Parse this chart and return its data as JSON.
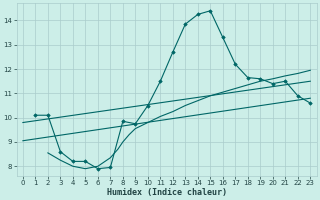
{
  "xlabel": "Humidex (Indice chaleur)",
  "bg_color": "#cceee8",
  "grid_color": "#aacccc",
  "line_color": "#006666",
  "xlim": [
    -0.5,
    23.5
  ],
  "ylim": [
    7.6,
    14.7
  ],
  "xticks": [
    0,
    1,
    2,
    3,
    4,
    5,
    6,
    7,
    8,
    9,
    10,
    11,
    12,
    13,
    14,
    15,
    16,
    17,
    18,
    19,
    20,
    21,
    22,
    23
  ],
  "yticks": [
    8,
    9,
    10,
    11,
    12,
    13,
    14
  ],
  "main_x": [
    1,
    2,
    3,
    4,
    5,
    6,
    7,
    8,
    9,
    10,
    11,
    12,
    13,
    14,
    15,
    16,
    17,
    18,
    19,
    20,
    21,
    22,
    23
  ],
  "main_y": [
    10.1,
    10.1,
    8.6,
    8.2,
    8.2,
    7.9,
    7.95,
    9.85,
    9.75,
    10.5,
    11.5,
    12.7,
    13.85,
    14.25,
    14.4,
    13.3,
    12.2,
    11.65,
    11.6,
    11.4,
    11.5,
    10.9,
    10.6
  ],
  "curve2_x": [
    2,
    3,
    4,
    5,
    6,
    7,
    7.6,
    8,
    8.5,
    9,
    10,
    11,
    12,
    13,
    14,
    15,
    16,
    17,
    18,
    19,
    20,
    21,
    22,
    23
  ],
  "curve2_y": [
    8.55,
    8.25,
    8.0,
    7.9,
    8.0,
    8.35,
    8.7,
    9.0,
    9.3,
    9.55,
    9.8,
    10.05,
    10.25,
    10.5,
    10.7,
    10.9,
    11.05,
    11.2,
    11.35,
    11.5,
    11.6,
    11.72,
    11.82,
    11.95
  ],
  "trend1_x": [
    0,
    23
  ],
  "trend1_y": [
    9.8,
    11.5
  ],
  "trend2_x": [
    0,
    23
  ],
  "trend2_y": [
    9.05,
    10.8
  ]
}
